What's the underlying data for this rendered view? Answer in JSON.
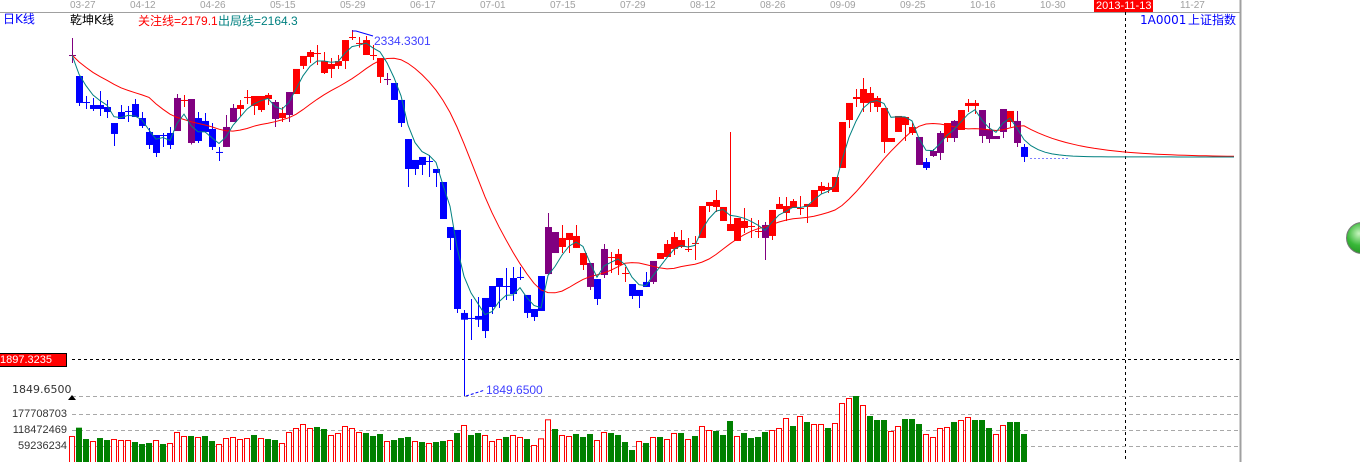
{
  "header": {
    "period_label": "日K线",
    "indicator_name": "乾坤K线",
    "focus_line": "关注线=2179.1",
    "exit_line": "出局线=2164.3",
    "symbol": "1A0001",
    "symbol_name": "上证指数"
  },
  "crosshair": {
    "date_label": "2013-11-13",
    "price_label": "1897.3235"
  },
  "colors": {
    "up": "#ff0000",
    "down": "#0000ff",
    "neutral": "#800080",
    "volume_up": "#ff0000",
    "volume_down": "#008000",
    "focus_line": "#ff0000",
    "exit_line": "#008080",
    "date_highlight": "#ff0000"
  },
  "chart_data": {
    "type": "candlestick",
    "x_tick_labels": [
      "03-27",
      "04-12",
      "04-26",
      "05-15",
      "05-29",
      "06-17",
      "07-01",
      "07-15",
      "07-29",
      "08-12",
      "08-26",
      "09-09",
      "09-25",
      "10-16",
      "10-30",
      "11-27"
    ],
    "price_annotations": {
      "high": "2334.3301",
      "low": "1849.6500",
      "low_axis_label": "1849.6500"
    },
    "price_range": [
      1849.65,
      2348
    ],
    "volume_tick_labels": [
      "177708703",
      "118472469",
      "59236234"
    ],
    "volume_ticks": [
      177708703,
      118472469,
      59236234
    ],
    "candle_fields": [
      "open",
      "high",
      "low",
      "close",
      "color"
    ],
    "candles": [
      [
        2313.9,
        2337.1,
        2303.0,
        2313.9,
        "p"
      ],
      [
        2285.3,
        2285.3,
        2244.5,
        2248.6,
        "d"
      ],
      [
        2249.9,
        2258.1,
        2240.4,
        2248.6,
        "d"
      ],
      [
        2245.8,
        2255.4,
        2237.7,
        2240.4,
        "d"
      ],
      [
        2245.8,
        2264.9,
        2230.9,
        2240.4,
        "d"
      ],
      [
        2243.1,
        2252.7,
        2228.1,
        2236.3,
        "d"
      ],
      [
        2221.3,
        2221.3,
        2190.0,
        2206.4,
        "d"
      ],
      [
        2236.3,
        2245.8,
        2226.8,
        2226.8,
        "d"
      ],
      [
        2237.7,
        2244.5,
        2222.7,
        2236.3,
        "d"
      ],
      [
        2247.2,
        2254.0,
        2229.5,
        2229.5,
        "d"
      ],
      [
        2228.1,
        2236.3,
        2214.5,
        2217.3,
        "d"
      ],
      [
        2209.1,
        2214.5,
        2186.0,
        2191.4,
        "d"
      ],
      [
        2205.0,
        2205.0,
        2175.1,
        2180.5,
        "d"
      ],
      [
        2205.0,
        2207.7,
        2188.7,
        2205.0,
        "d"
      ],
      [
        2207.7,
        2215.9,
        2186.0,
        2191.4,
        "d"
      ],
      [
        2210.4,
        2260.8,
        2210.4,
        2255.4,
        "p"
      ],
      [
        2251.3,
        2259.5,
        2243.1,
        2252.7,
        "u"
      ],
      [
        2254.0,
        2254.0,
        2192.0,
        2194.1,
        "p"
      ],
      [
        2228.1,
        2236.3,
        2194.1,
        2196.8,
        "d"
      ],
      [
        2224.1,
        2235.0,
        2209.1,
        2209.1,
        "d"
      ],
      [
        2213.2,
        2221.3,
        2184.6,
        2188.7,
        "d"
      ],
      [
        2181.9,
        2188.7,
        2169.6,
        2181.9,
        "d"
      ],
      [
        2188.7,
        2232.2,
        2188.7,
        2215.9,
        "p"
      ],
      [
        2222.7,
        2247.2,
        2222.7,
        2241.8,
        "p"
      ],
      [
        2240.4,
        2252.7,
        2230.9,
        2245.8,
        "u"
      ],
      [
        2256.7,
        2266.3,
        2247.2,
        2256.7,
        "u"
      ],
      [
        2244.5,
        2258.1,
        2232.2,
        2258.1,
        "u"
      ],
      [
        2239.0,
        2258.1,
        2236.3,
        2258.1,
        "u"
      ],
      [
        2254.0,
        2262.2,
        2245.8,
        2259.5,
        "u"
      ],
      [
        2249.9,
        2252.7,
        2215.9,
        2226.8,
        "p"
      ],
      [
        2228.1,
        2243.1,
        2222.7,
        2235.0,
        "u"
      ],
      [
        2232.2,
        2263.5,
        2222.7,
        2263.5,
        "p"
      ],
      [
        2260.8,
        2294.9,
        2260.8,
        2294.9,
        "u"
      ],
      [
        2299.0,
        2312.6,
        2294.9,
        2312.6,
        "u"
      ],
      [
        2311.2,
        2320.7,
        2303.0,
        2318.0,
        "u"
      ],
      [
        2316.6,
        2327.5,
        2300.3,
        2316.6,
        "u"
      ],
      [
        2289.4,
        2318.0,
        2288.0,
        2305.7,
        "u"
      ],
      [
        2294.9,
        2309.8,
        2282.6,
        2301.7,
        "u"
      ],
      [
        2299.0,
        2313.9,
        2294.9,
        2305.7,
        "u"
      ],
      [
        2305.7,
        2334.3,
        2294.9,
        2334.3,
        "u"
      ],
      [
        2338.4,
        2348.0,
        2334.3,
        2338.4,
        "u"
      ],
      [
        2330.3,
        2338.4,
        2323.9,
        2330.3,
        "u"
      ],
      [
        2313.9,
        2339.8,
        2313.9,
        2334.3,
        "u"
      ],
      [
        2313.9,
        2327.5,
        2307.1,
        2313.9,
        "u"
      ],
      [
        2284.0,
        2309.8,
        2275.8,
        2309.8,
        "u"
      ],
      [
        2281.2,
        2289.4,
        2273.0,
        2281.2,
        "p"
      ],
      [
        2275.8,
        2275.8,
        2252.7,
        2252.7,
        "d"
      ],
      [
        2252.7,
        2252.7,
        2215.9,
        2221.3,
        "d"
      ],
      [
        2199.5,
        2199.5,
        2134.2,
        2158.7,
        "d"
      ],
      [
        2171.0,
        2171.0,
        2150.5,
        2158.7,
        "d"
      ],
      [
        2175.1,
        2175.1,
        2150.5,
        2164.2,
        "d"
      ],
      [
        2169.6,
        2177.8,
        2147.8,
        2169.6,
        "d"
      ],
      [
        2158.7,
        2158.7,
        2134.2,
        2153.3,
        "d"
      ],
      [
        2141.0,
        2141.0,
        2090.6,
        2090.6,
        "d"
      ],
      [
        2079.7,
        2079.7,
        2048.4,
        2064.8,
        "d"
      ],
      [
        2075.7,
        2075.7,
        1962.7,
        1968.1,
        "d"
      ],
      [
        1962.7,
        1966.7,
        1849.65,
        1953.5,
        "d"
      ],
      [
        1955.9,
        1981.7,
        1925.9,
        1955.9,
        "d"
      ],
      [
        1958.6,
        1984.4,
        1943.6,
        1953.5,
        "d"
      ],
      [
        1983.1,
        1983.1,
        1928.6,
        1938.1,
        "d"
      ],
      [
        1999.4,
        1999.4,
        1961.3,
        1970.8,
        "d"
      ],
      [
        2010.3,
        2010.3,
        1969.5,
        1998.1,
        "d"
      ],
      [
        1999.4,
        2023.9,
        1980.4,
        1999.4,
        "d"
      ],
      [
        2010.3,
        2025.3,
        1979.0,
        1988.5,
        "d"
      ],
      [
        2011.7,
        2025.3,
        2007.6,
        2011.7,
        "d"
      ],
      [
        1987.2,
        1987.2,
        1955.9,
        1962.7,
        "d"
      ],
      [
        1968.1,
        1968.1,
        1951.8,
        1957.2,
        "d"
      ],
      [
        2013.0,
        2013.0,
        1965.4,
        1965.4,
        "d"
      ],
      [
        2015.7,
        2098.8,
        2014.4,
        2079.7,
        "p"
      ],
      [
        2072.9,
        2072.9,
        2044.3,
        2044.3,
        "p"
      ],
      [
        2052.5,
        2082.5,
        2044.3,
        2064.8,
        "u"
      ],
      [
        2062.0,
        2071.6,
        2044.3,
        2071.6,
        "u"
      ],
      [
        2051.2,
        2082.5,
        2051.2,
        2067.5,
        "u"
      ],
      [
        2028.0,
        2044.3,
        2021.2,
        2044.3,
        "u"
      ],
      [
        2030.7,
        2030.7,
        1994.0,
        1998.1,
        "p"
      ],
      [
        2008.9,
        2008.9,
        1973.5,
        1981.7,
        "d"
      ],
      [
        2014.4,
        2056.6,
        2010.3,
        2049.8,
        "p"
      ],
      [
        2038.9,
        2045.7,
        2017.1,
        2038.9,
        "u"
      ],
      [
        2028.0,
        2049.8,
        2014.4,
        2043.0,
        "u"
      ],
      [
        2017.1,
        2025.3,
        2004.9,
        2017.1,
        "u"
      ],
      [
        2002.1,
        2002.1,
        1981.7,
        1985.8,
        "d"
      ],
      [
        1994.0,
        1994.0,
        1969.5,
        1985.8,
        "d"
      ],
      [
        2004.9,
        2018.5,
        1998.1,
        1998.1,
        "d"
      ],
      [
        2004.9,
        2033.5,
        2002.1,
        2033.5,
        "p"
      ],
      [
        2036.2,
        2044.3,
        2036.2,
        2044.3,
        "u"
      ],
      [
        2038.9,
        2062.0,
        2038.9,
        2056.6,
        "u"
      ],
      [
        2049.8,
        2072.9,
        2041.6,
        2066.1,
        "u"
      ],
      [
        2052.5,
        2075.7,
        2051.2,
        2062.0,
        "u"
      ],
      [
        2049.8,
        2064.8,
        2045.7,
        2049.8,
        "u"
      ],
      [
        2058.0,
        2067.5,
        2034.8,
        2058.0,
        "u"
      ],
      [
        2064.8,
        2108.3,
        2064.8,
        2108.3,
        "u"
      ],
      [
        2108.3,
        2113.8,
        2100.2,
        2113.8,
        "u"
      ],
      [
        2107.0,
        2130.1,
        2100.2,
        2116.5,
        "u"
      ],
      [
        2087.9,
        2107.0,
        2087.9,
        2107.0,
        "u"
      ],
      [
        2074.3,
        2209.1,
        2074.3,
        2083.8,
        "u"
      ],
      [
        2060.7,
        2092.0,
        2060.7,
        2092.0,
        "u"
      ],
      [
        2078.4,
        2105.6,
        2071.6,
        2087.9,
        "u"
      ],
      [
        2081.1,
        2092.0,
        2064.8,
        2081.1,
        "u"
      ],
      [
        2074.3,
        2089.3,
        2064.8,
        2074.3,
        "u"
      ],
      [
        2082.5,
        2086.6,
        2034.8,
        2064.8,
        "p"
      ],
      [
        2067.5,
        2102.9,
        2062.0,
        2102.9,
        "u"
      ],
      [
        2104.2,
        2120.6,
        2104.2,
        2111.1,
        "u"
      ],
      [
        2098.8,
        2120.6,
        2087.9,
        2108.3,
        "u"
      ],
      [
        2105.6,
        2117.9,
        2105.6,
        2115.1,
        "u"
      ],
      [
        2105.6,
        2121.9,
        2096.1,
        2105.6,
        "u"
      ],
      [
        2107.0,
        2111.1,
        2085.2,
        2111.1,
        "u"
      ],
      [
        2107.0,
        2130.1,
        2107.0,
        2130.1,
        "u"
      ],
      [
        2128.8,
        2141.0,
        2124.7,
        2135.6,
        "u"
      ],
      [
        2130.1,
        2140.0,
        2126.0,
        2134.2,
        "u"
      ],
      [
        2127.4,
        2147.8,
        2127.4,
        2147.8,
        "u"
      ],
      [
        2160.1,
        2222.7,
        2160.1,
        2222.7,
        "u"
      ],
      [
        2225.4,
        2248.6,
        2214.5,
        2248.6,
        "u"
      ],
      [
        2254.0,
        2267.6,
        2243.1,
        2256.7,
        "u"
      ],
      [
        2248.6,
        2282.6,
        2236.3,
        2267.6,
        "u"
      ],
      [
        2248.6,
        2270.3,
        2236.3,
        2262.2,
        "u"
      ],
      [
        2243.1,
        2258.1,
        2236.3,
        2255.4,
        "u"
      ],
      [
        2195.5,
        2241.8,
        2180.5,
        2241.8,
        "u"
      ],
      [
        2195.5,
        2200.9,
        2195.5,
        2200.9,
        "u"
      ],
      [
        2209.1,
        2230.9,
        2209.1,
        2230.9,
        "u"
      ],
      [
        2218.6,
        2229.5,
        2196.8,
        2229.5,
        "u"
      ],
      [
        2207.7,
        2221.3,
        2205.0,
        2215.9,
        "u"
      ],
      [
        2202.3,
        2202.3,
        2164.2,
        2164.2,
        "p"
      ],
      [
        2168.2,
        2173.7,
        2157.4,
        2160.1,
        "d"
      ],
      [
        2176.4,
        2186.0,
        2175.1,
        2183.2,
        "p"
      ],
      [
        2180.5,
        2210.4,
        2171.0,
        2207.7,
        "p"
      ],
      [
        2200.9,
        2221.3,
        2195.5,
        2221.3,
        "u"
      ],
      [
        2200.9,
        2225.4,
        2195.5,
        2224.1,
        "p"
      ],
      [
        2211.8,
        2239.0,
        2211.8,
        2239.0,
        "u"
      ],
      [
        2244.5,
        2254.0,
        2236.3,
        2248.6,
        "u"
      ],
      [
        2244.5,
        2252.7,
        2233.6,
        2248.6,
        "u"
      ],
      [
        2239.0,
        2239.0,
        2194.1,
        2203.6,
        "p"
      ],
      [
        2211.8,
        2221.3,
        2194.1,
        2199.5,
        "p"
      ],
      [
        2203.6,
        2203.6,
        2199.5,
        2199.5,
        "p"
      ],
      [
        2209.1,
        2240.4,
        2200.9,
        2240.4,
        "p"
      ],
      [
        2222.7,
        2237.7,
        2215.9,
        2237.7,
        "u"
      ],
      [
        2224.1,
        2237.7,
        2188.7,
        2194.1,
        "p"
      ],
      [
        2188.7,
        2192.8,
        2168.2,
        2175.1,
        "d"
      ]
    ],
    "volumes": [
      96300000.0,
      127100000.0,
      85100000.0,
      77700000.0,
      88800000.0,
      81400000.0,
      85100000.0,
      81400000.0,
      81400000.0,
      74000000.0,
      66600000.0,
      70300000.0,
      81400000.0,
      66600000.0,
      70300000.0,
      111100000.0,
      96300000.0,
      96300000.0,
      92600000.0,
      96300000.0,
      77700000.0,
      66600000.0,
      88800000.0,
      92600000.0,
      85100000.0,
      88800000.0,
      100000000.0,
      88800000.0,
      85100000.0,
      81400000.0,
      70300000.0,
      111100000.0,
      125900000.0,
      140700000.0,
      125900000.0,
      129600000.0,
      122200000.0,
      100000000.0,
      107400000.0,
      133300000.0,
      125900000.0,
      111100000.0,
      107400000.0,
      96300000.0,
      103700000.0,
      77700000.0,
      81400000.0,
      88800000.0,
      92600000.0,
      77700000.0,
      74000000.0,
      70300000.0,
      74000000.0,
      77700000.0,
      81400000.0,
      107400000.0,
      137000000.0,
      100000000.0,
      107400000.0,
      100000000.0,
      77700000.0,
      85100000.0,
      92600000.0,
      100000000.0,
      92600000.0,
      85100000.0,
      62900000.0,
      87600000.0,
      158000000.0,
      122200000.0,
      100000000.0,
      96300000.0,
      103700000.0,
      92600000.0,
      103700000.0,
      81400000.0,
      111100000.0,
      107400000.0,
      100000000.0,
      74000000.0,
      44400000.0,
      77700000.0,
      70300000.0,
      92600000.0,
      92600000.0,
      85100000.0,
      107400000.0,
      107400000.0,
      85100000.0,
      96300000.0,
      133300000.0,
      118500000.0,
      114800000.0,
      100000000.0,
      151800000.0,
      96300000.0,
      107400000.0,
      88800000.0,
      92600000.0,
      111100000.0,
      118500000.0,
      125900000.0,
      162900000.0,
      133300000.0,
      170300000.0,
      148100000.0,
      140700000.0,
      140700000.0,
      125900000.0,
      144400000.0,
      218400000.0,
      236900000.0,
      244300000.0,
      211000000.0,
      170300000.0,
      155500000.0,
      155500000.0,
      114800000.0,
      133300000.0,
      159200000.0,
      159200000.0,
      140700000.0,
      103700000.0,
      92600000.0,
      125900000.0,
      129600000.0,
      148100000.0,
      155500000.0,
      166600000.0,
      155500000.0,
      155500000.0,
      125900000.0,
      103700000.0,
      137000000.0,
      148100000.0,
      148100000.0,
      103700000.0
    ],
    "volume_colors": "rggrggrrrgggrgrrrgrggrrrrrgrggrrrrrggrrrrrgggrgggrgrggrgrggrrrgrrgrrrgrrgggrrggggrgrgrrgrgrrgggrggggrrrgrgrrgrrrgrgggrrgggrrrrgrrgggrrggg",
    "lines": [
      {
        "name": "关注线",
        "value": 2179.1
      },
      {
        "name": "出局线",
        "value": 2164.3
      }
    ]
  }
}
